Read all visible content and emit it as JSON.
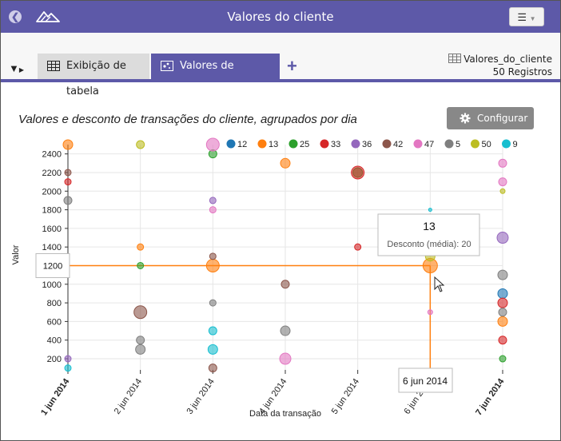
{
  "window": {
    "title": "Valores do cliente"
  },
  "tabs": [
    {
      "label": "Exibição de tabela"
    },
    {
      "label": "Valores de transações"
    }
  ],
  "dataset": {
    "name": "Valores_do_cliente",
    "records": "50 Registros"
  },
  "configure_label": "Configurar",
  "tooltip": {
    "title": "13",
    "line": "Desconto (média): 20"
  },
  "crosshair": {
    "y_label": "1200",
    "x_label": "6 jun 2014"
  },
  "colors": {
    "accent": "#5d59a8"
  },
  "chart_data": {
    "type": "scatter",
    "title": "Valores e desconto de transações do cliente, agrupados por dia",
    "xlabel": "Data da transação",
    "ylabel": "Valor",
    "x_categories": [
      "1 jun 2014",
      "2 jun 2014",
      "3 jun 2014",
      "4 jun 2014",
      "5 jun 2014",
      "6 jun 2014",
      "7 jun 2014"
    ],
    "yticks": [
      200,
      400,
      600,
      800,
      1000,
      1200,
      1400,
      1600,
      1800,
      2000,
      2200,
      2400
    ],
    "ylim": [
      80,
      2500
    ],
    "legend_position": "top",
    "series": [
      {
        "name": "12",
        "color": "#1f77b4",
        "points": [
          [
            6,
            900,
            6
          ]
        ]
      },
      {
        "name": "13",
        "color": "#ff7f0e",
        "points": [
          [
            0,
            2500,
            6
          ],
          [
            1,
            1400,
            4
          ],
          [
            2,
            1200,
            8
          ],
          [
            3,
            2300,
            6
          ],
          [
            5,
            1200,
            9
          ],
          [
            6,
            600,
            6
          ]
        ]
      },
      {
        "name": "25",
        "color": "#2ca02c",
        "points": [
          [
            1,
            1200,
            4
          ],
          [
            2,
            2400,
            5
          ],
          [
            4,
            2200,
            6
          ],
          [
            6,
            200,
            4
          ]
        ]
      },
      {
        "name": "33",
        "color": "#d62728",
        "points": [
          [
            0,
            2100,
            4
          ],
          [
            4,
            1400,
            4
          ],
          [
            4,
            2200,
            8
          ],
          [
            6,
            800,
            6
          ],
          [
            6,
            400,
            5
          ]
        ]
      },
      {
        "name": "36",
        "color": "#9467bd",
        "points": [
          [
            0,
            200,
            4
          ],
          [
            2,
            1900,
            4
          ],
          [
            6,
            1500,
            7
          ]
        ]
      },
      {
        "name": "42",
        "color": "#8c564b",
        "points": [
          [
            0,
            2200,
            4
          ],
          [
            1,
            700,
            8
          ],
          [
            2,
            1300,
            4
          ],
          [
            2,
            100,
            5
          ],
          [
            3,
            1000,
            5
          ]
        ]
      },
      {
        "name": "47",
        "color": "#e377c2",
        "points": [
          [
            2,
            2500,
            8
          ],
          [
            2,
            1800,
            4
          ],
          [
            3,
            200,
            7
          ],
          [
            5,
            700,
            3
          ],
          [
            6,
            2300,
            5
          ],
          [
            6,
            2100,
            5
          ]
        ]
      },
      {
        "name": "5",
        "color": "#7f7f7f",
        "points": [
          [
            0,
            1900,
            5
          ],
          [
            1,
            400,
            5
          ],
          [
            1,
            300,
            6
          ],
          [
            2,
            800,
            4
          ],
          [
            3,
            500,
            6
          ],
          [
            6,
            1100,
            6
          ],
          [
            6,
            700,
            5
          ]
        ]
      },
      {
        "name": "50",
        "color": "#bcbd22",
        "points": [
          [
            1,
            2500,
            5
          ],
          [
            5,
            1300,
            6
          ],
          [
            6,
            2000,
            3
          ]
        ]
      },
      {
        "name": "9",
        "color": "#17becf",
        "points": [
          [
            0,
            100,
            4
          ],
          [
            2,
            500,
            5
          ],
          [
            2,
            300,
            6
          ],
          [
            5,
            1800,
            2
          ]
        ]
      }
    ]
  }
}
